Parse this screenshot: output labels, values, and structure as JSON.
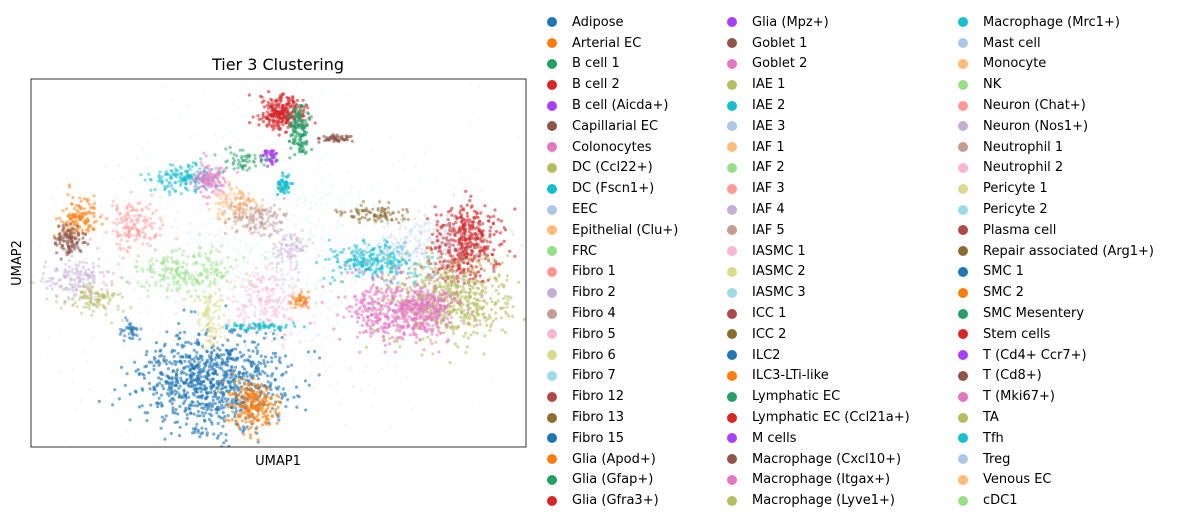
{
  "chart_data": {
    "type": "scatter",
    "title": "Tier 3 Clustering",
    "xlabel": "UMAP1",
    "ylabel": "UMAP2",
    "xticks": false,
    "yticks": false,
    "legend_position": "right, outside plot, 3 columns",
    "series": [
      {
        "name": "Adipose",
        "color": "#1f77b4"
      },
      {
        "name": "Arterial EC",
        "color": "#ff7f0e"
      },
      {
        "name": "B cell 1",
        "color": "#279e68"
      },
      {
        "name": "B cell 2",
        "color": "#d62728"
      },
      {
        "name": "B cell (Aicda+)",
        "color": "#aa40fc"
      },
      {
        "name": "Capillarial EC",
        "color": "#8c564b"
      },
      {
        "name": "Colonocytes",
        "color": "#e377c2"
      },
      {
        "name": "DC (Ccl22+)",
        "color": "#b5bd61"
      },
      {
        "name": "DC (Fscn1+)",
        "color": "#17becf"
      },
      {
        "name": "EEC",
        "color": "#aec7e8"
      },
      {
        "name": "Epithelial (Clu+)",
        "color": "#ffbb78"
      },
      {
        "name": "FRC",
        "color": "#98df8a"
      },
      {
        "name": "Fibro 1",
        "color": "#ff9896"
      },
      {
        "name": "Fibro 2",
        "color": "#c5b0d5"
      },
      {
        "name": "Fibro 4",
        "color": "#c49c94"
      },
      {
        "name": "Fibro 5",
        "color": "#f7b6d2"
      },
      {
        "name": "Fibro 6",
        "color": "#dbdb8d"
      },
      {
        "name": "Fibro 7",
        "color": "#9edae5"
      },
      {
        "name": "Fibro 12",
        "color": "#ad494a"
      },
      {
        "name": "Fibro 13",
        "color": "#8c6d31"
      },
      {
        "name": "Fibro 15",
        "color": "#1f77b4"
      },
      {
        "name": "Glia (Apod+)",
        "color": "#ff7f0e"
      },
      {
        "name": "Glia (Gfap+)",
        "color": "#279e68"
      },
      {
        "name": "Glia (Gfra3+)",
        "color": "#d62728"
      },
      {
        "name": "Glia (Mpz+)",
        "color": "#aa40fc"
      },
      {
        "name": "Goblet 1",
        "color": "#8c564b"
      },
      {
        "name": "Goblet 2",
        "color": "#e377c2"
      },
      {
        "name": "IAE 1",
        "color": "#b5bd61"
      },
      {
        "name": "IAE 2",
        "color": "#17becf"
      },
      {
        "name": "IAE 3",
        "color": "#aec7e8"
      },
      {
        "name": "IAF 1",
        "color": "#ffbb78"
      },
      {
        "name": "IAF 2",
        "color": "#98df8a"
      },
      {
        "name": "IAF 3",
        "color": "#ff9896"
      },
      {
        "name": "IAF 4",
        "color": "#c5b0d5"
      },
      {
        "name": "IAF 5",
        "color": "#c49c94"
      },
      {
        "name": "IASMC 1",
        "color": "#f7b6d2"
      },
      {
        "name": "IASMC 2",
        "color": "#dbdb8d"
      },
      {
        "name": "IASMC 3",
        "color": "#9edae5"
      },
      {
        "name": "ICC 1",
        "color": "#ad494a"
      },
      {
        "name": "ICC 2",
        "color": "#8c6d31"
      },
      {
        "name": "ILC2",
        "color": "#1f77b4"
      },
      {
        "name": "ILC3-LTi-like",
        "color": "#ff7f0e"
      },
      {
        "name": "Lymphatic EC",
        "color": "#279e68"
      },
      {
        "name": "Lymphatic EC (Ccl21a+)",
        "color": "#d62728"
      },
      {
        "name": "M cells",
        "color": "#aa40fc"
      },
      {
        "name": "Macrophage (Cxcl10+)",
        "color": "#8c564b"
      },
      {
        "name": "Macrophage (Itgax+)",
        "color": "#e377c2"
      },
      {
        "name": "Macrophage (Lyve1+)",
        "color": "#b5bd61"
      },
      {
        "name": "Macrophage (Mrc1+)",
        "color": "#17becf"
      },
      {
        "name": "Mast cell",
        "color": "#aec7e8"
      },
      {
        "name": "Monocyte",
        "color": "#ffbb78"
      },
      {
        "name": "NK",
        "color": "#98df8a"
      },
      {
        "name": "Neuron (Chat+)",
        "color": "#ff9896"
      },
      {
        "name": "Neuron (Nos1+)",
        "color": "#c5b0d5"
      },
      {
        "name": "Neutrophil 1",
        "color": "#c49c94"
      },
      {
        "name": "Neutrophil 2",
        "color": "#f7b6d2"
      },
      {
        "name": "Pericyte 1",
        "color": "#dbdb8d"
      },
      {
        "name": "Pericyte 2",
        "color": "#9edae5"
      },
      {
        "name": "Plasma cell",
        "color": "#ad494a"
      },
      {
        "name": "Repair associated  (Arg1+)",
        "color": "#8c6d31"
      },
      {
        "name": "SMC 1",
        "color": "#1f77b4"
      },
      {
        "name": "SMC 2",
        "color": "#ff7f0e"
      },
      {
        "name": "SMC Mesentery",
        "color": "#279e68"
      },
      {
        "name": "Stem cells",
        "color": "#d62728"
      },
      {
        "name": "T (Cd4+ Ccr7+)",
        "color": "#aa40fc"
      },
      {
        "name": "T (Cd8+)",
        "color": "#8c564b"
      },
      {
        "name": "T (Mki67+)",
        "color": "#e377c2"
      },
      {
        "name": "TA",
        "color": "#b5bd61"
      },
      {
        "name": "Tfh",
        "color": "#17becf"
      },
      {
        "name": "Treg",
        "color": "#aec7e8"
      },
      {
        "name": "Venous EC",
        "color": "#ffbb78"
      },
      {
        "name": "cDC1",
        "color": "#98df8a"
      }
    ]
  }
}
